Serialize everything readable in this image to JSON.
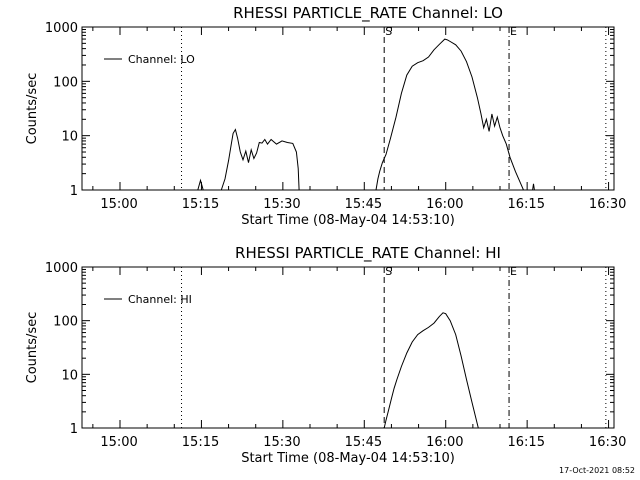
{
  "figure": {
    "timestamp": "17-Oct-2021 08:52"
  },
  "chart_data": [
    {
      "type": "line",
      "title": "RHESSI PARTICLE_RATE Channel: LO",
      "xlabel": "Start Time (08-May-04 14:53:10)",
      "ylabel": "Counts/sec",
      "y_scale": "log",
      "ylim": [
        1,
        1000
      ],
      "xlim_minutes_after_start": [
        0,
        98
      ],
      "x_ticks": [
        "15:00",
        "15:15",
        "15:30",
        "15:45",
        "16:00",
        "16:15",
        "16:30"
      ],
      "y_ticks": [
        "1",
        "10",
        "100",
        "1000"
      ],
      "legend": {
        "position": "top-left",
        "entries": [
          "Channel: LO"
        ]
      },
      "marker_labels": {
        "start": "S",
        "end": "E"
      },
      "series": [
        {
          "name": "Channel: LO",
          "points": [
            [
              "15:14:30",
              1
            ],
            [
              "15:15:00",
              1.5
            ],
            [
              "15:15:30",
              1
            ],
            [
              "15:18:50",
              1
            ],
            [
              "15:19:30",
              1.6
            ],
            [
              "15:20:10",
              3.5
            ],
            [
              "15:20:40",
              7
            ],
            [
              "15:21:00",
              11
            ],
            [
              "15:21:25",
              13
            ],
            [
              "15:21:50",
              9
            ],
            [
              "15:22:20",
              5
            ],
            [
              "15:22:50",
              3.6
            ],
            [
              "15:23:20",
              5.2
            ],
            [
              "15:23:50",
              3.2
            ],
            [
              "15:24:20",
              5.5
            ],
            [
              "15:24:50",
              3.8
            ],
            [
              "15:25:20",
              4.8
            ],
            [
              "15:25:50",
              7.5
            ],
            [
              "15:26:20",
              7.3
            ],
            [
              "15:26:50",
              8.5
            ],
            [
              "15:27:20",
              7
            ],
            [
              "15:28:00",
              8.5
            ],
            [
              "15:29:00",
              7
            ],
            [
              "15:30:00",
              8
            ],
            [
              "15:31:00",
              7.5
            ],
            [
              "15:32:00",
              7.2
            ],
            [
              "15:32:40",
              5
            ],
            [
              "15:33:00",
              2.5
            ],
            [
              "15:33:10",
              1
            ],
            [
              "15:47:20",
              1
            ],
            [
              "15:47:40",
              1.6
            ],
            [
              "15:48:00",
              2.2
            ],
            [
              "15:48:30",
              3.2
            ],
            [
              "15:49:10",
              4.5
            ],
            [
              "15:50:00",
              9
            ],
            [
              "15:51:00",
              22
            ],
            [
              "15:52:00",
              60
            ],
            [
              "15:53:00",
              130
            ],
            [
              "15:54:00",
              190
            ],
            [
              "15:55:00",
              220
            ],
            [
              "15:56:00",
              240
            ],
            [
              "15:57:00",
              280
            ],
            [
              "15:58:00",
              380
            ],
            [
              "15:59:00",
              480
            ],
            [
              "16:00:00",
              600
            ],
            [
              "16:00:30",
              580
            ],
            [
              "16:01:00",
              540
            ],
            [
              "16:02:00",
              470
            ],
            [
              "16:03:00",
              360
            ],
            [
              "16:04:00",
              230
            ],
            [
              "16:05:00",
              120
            ],
            [
              "16:06:00",
              50
            ],
            [
              "16:06:40",
              25
            ],
            [
              "16:07:10",
              14
            ],
            [
              "16:07:40",
              20
            ],
            [
              "16:08:10",
              12
            ],
            [
              "16:08:40",
              25
            ],
            [
              "16:09:10",
              15
            ],
            [
              "16:09:40",
              22
            ],
            [
              "16:10:10",
              14
            ],
            [
              "16:10:40",
              10
            ],
            [
              "16:11:20",
              7
            ],
            [
              "16:12:00",
              4
            ],
            [
              "16:13:00",
              2.2
            ],
            [
              "16:14:00",
              1.3
            ],
            [
              "16:14:30",
              1
            ],
            [
              "16:16:10",
              1
            ],
            [
              "16:16:20",
              1.3
            ],
            [
              "16:16:30",
              1
            ]
          ]
        }
      ],
      "vertical_lines": [
        {
          "time": "15:11:30",
          "style": "dotted"
        },
        {
          "time": "15:48:50",
          "style": "dashed",
          "label": "S"
        },
        {
          "time": "16:11:50",
          "style": "dash-dot",
          "label": "E"
        },
        {
          "time": "16:29:40",
          "style": "dotted"
        }
      ]
    },
    {
      "type": "line",
      "title": "RHESSI PARTICLE_RATE Channel: HI",
      "xlabel": "Start Time (08-May-04 14:53:10)",
      "ylabel": "Counts/sec",
      "y_scale": "log",
      "ylim": [
        1,
        1000
      ],
      "xlim_minutes_after_start": [
        0,
        98
      ],
      "x_ticks": [
        "15:00",
        "15:15",
        "15:30",
        "15:45",
        "16:00",
        "16:15",
        "16:30"
      ],
      "y_ticks": [
        "1",
        "10",
        "100",
        "1000"
      ],
      "legend": {
        "position": "top-left",
        "entries": [
          "Channel: HI"
        ]
      },
      "marker_labels": {
        "start": "S",
        "end": "E"
      },
      "series": [
        {
          "name": "Channel: HI",
          "points": [
            [
              "15:48:50",
              1
            ],
            [
              "15:49:10",
              1.4
            ],
            [
              "15:49:40",
              2.2
            ],
            [
              "15:50:10",
              3.5
            ],
            [
              "15:50:40",
              5.5
            ],
            [
              "15:51:10",
              8
            ],
            [
              "15:52:00",
              14
            ],
            [
              "15:53:00",
              25
            ],
            [
              "15:54:00",
              40
            ],
            [
              "15:55:00",
              55
            ],
            [
              "15:56:00",
              65
            ],
            [
              "15:57:00",
              75
            ],
            [
              "15:58:00",
              90
            ],
            [
              "15:59:00",
              120
            ],
            [
              "15:59:40",
              140
            ],
            [
              "16:00:10",
              135
            ],
            [
              "16:01:00",
              100
            ],
            [
              "16:02:00",
              55
            ],
            [
              "16:03:00",
              22
            ],
            [
              "16:04:00",
              8
            ],
            [
              "16:05:00",
              3
            ],
            [
              "16:05:40",
              1.6
            ],
            [
              "16:06:10",
              1
            ]
          ]
        }
      ],
      "vertical_lines": [
        {
          "time": "15:11:30",
          "style": "dotted"
        },
        {
          "time": "15:48:50",
          "style": "dashed",
          "label": "S"
        },
        {
          "time": "16:11:50",
          "style": "dash-dot",
          "label": "E"
        },
        {
          "time": "16:29:40",
          "style": "dotted"
        }
      ]
    }
  ]
}
